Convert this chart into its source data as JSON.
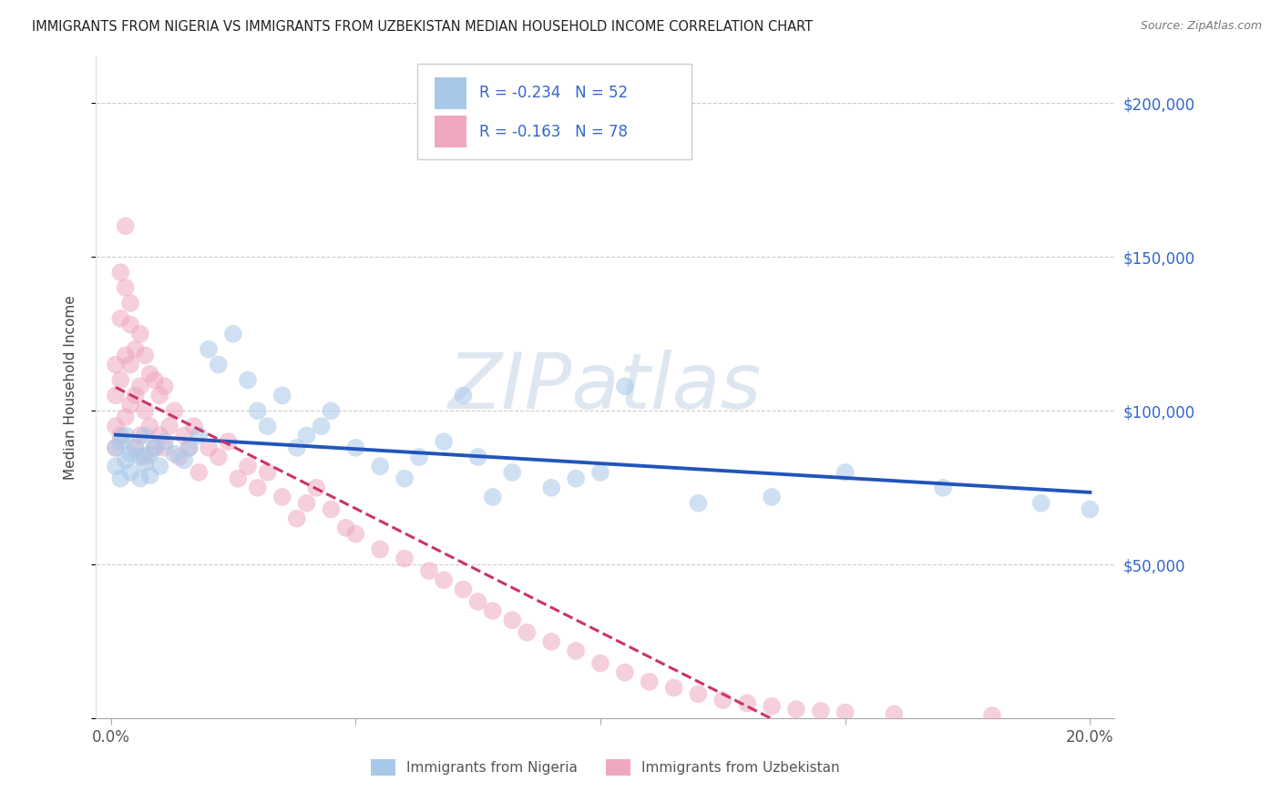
{
  "title": "IMMIGRANTS FROM NIGERIA VS IMMIGRANTS FROM UZBEKISTAN MEDIAN HOUSEHOLD INCOME CORRELATION CHART",
  "source": "Source: ZipAtlas.com",
  "ylabel": "Median Household Income",
  "nigeria_label": "Immigrants from Nigeria",
  "uzbekistan_label": "Immigrants from Uzbekistan",
  "nigeria_R": -0.234,
  "nigeria_N": 52,
  "uzbekistan_R": -0.163,
  "uzbekistan_N": 78,
  "nigeria_scatter_color": "#a8c8e8",
  "uzbekistan_scatter_color": "#f0a8c0",
  "nigeria_trend_color": "#2255bb",
  "uzbekistan_trend_color": "#cc3366",
  "watermark_color": "#c8d8e8",
  "watermark_text": "ZIPatlas",
  "right_tick_color": "#3366cc",
  "grid_color": "#cccccc",
  "title_color": "#222222",
  "source_color": "#777777",
  "xlim": [
    -0.003,
    0.205
  ],
  "ylim": [
    0,
    215000
  ],
  "xticks": [
    0.0,
    0.05,
    0.1,
    0.15,
    0.2
  ],
  "xtick_labels": [
    "0.0%",
    "",
    "",
    "",
    "20.0%"
  ],
  "yticks": [
    0,
    50000,
    100000,
    150000,
    200000
  ],
  "ytick_labels_right": [
    "$50,000",
    "$100,000",
    "$150,000",
    "$200,000"
  ],
  "marker_size": 200,
  "marker_alpha": 0.55,
  "nigeria_x": [
    0.001,
    0.001,
    0.002,
    0.002,
    0.003,
    0.003,
    0.004,
    0.004,
    0.005,
    0.006,
    0.006,
    0.007,
    0.007,
    0.008,
    0.008,
    0.009,
    0.01,
    0.011,
    0.013,
    0.015,
    0.016,
    0.018,
    0.02,
    0.022,
    0.025,
    0.028,
    0.03,
    0.032,
    0.035,
    0.038,
    0.04,
    0.043,
    0.045,
    0.05,
    0.055,
    0.06,
    0.063,
    0.068,
    0.072,
    0.075,
    0.078,
    0.082,
    0.09,
    0.095,
    0.1,
    0.105,
    0.12,
    0.135,
    0.15,
    0.17,
    0.19,
    0.2
  ],
  "nigeria_y": [
    88000,
    82000,
    90000,
    78000,
    92000,
    84000,
    86000,
    80000,
    88000,
    85000,
    78000,
    92000,
    83000,
    86000,
    79000,
    88000,
    82000,
    90000,
    86000,
    84000,
    88000,
    92000,
    120000,
    115000,
    125000,
    110000,
    100000,
    95000,
    105000,
    88000,
    92000,
    95000,
    100000,
    88000,
    82000,
    78000,
    85000,
    90000,
    105000,
    85000,
    72000,
    80000,
    75000,
    78000,
    80000,
    108000,
    70000,
    72000,
    80000,
    75000,
    70000,
    68000
  ],
  "uzbekistan_x": [
    0.001,
    0.001,
    0.001,
    0.001,
    0.002,
    0.002,
    0.002,
    0.002,
    0.003,
    0.003,
    0.003,
    0.003,
    0.004,
    0.004,
    0.004,
    0.004,
    0.005,
    0.005,
    0.005,
    0.006,
    0.006,
    0.006,
    0.007,
    0.007,
    0.007,
    0.008,
    0.008,
    0.009,
    0.009,
    0.01,
    0.01,
    0.011,
    0.011,
    0.012,
    0.013,
    0.014,
    0.015,
    0.016,
    0.017,
    0.018,
    0.02,
    0.022,
    0.024,
    0.026,
    0.028,
    0.03,
    0.032,
    0.035,
    0.038,
    0.04,
    0.042,
    0.045,
    0.048,
    0.05,
    0.055,
    0.06,
    0.065,
    0.068,
    0.072,
    0.075,
    0.078,
    0.082,
    0.085,
    0.09,
    0.095,
    0.1,
    0.105,
    0.11,
    0.115,
    0.12,
    0.125,
    0.13,
    0.135,
    0.14,
    0.145,
    0.15,
    0.16,
    0.18
  ],
  "uzbekistan_y": [
    95000,
    115000,
    88000,
    105000,
    130000,
    145000,
    110000,
    92000,
    160000,
    140000,
    118000,
    98000,
    135000,
    115000,
    128000,
    102000,
    120000,
    105000,
    88000,
    125000,
    108000,
    92000,
    118000,
    100000,
    85000,
    112000,
    95000,
    110000,
    88000,
    105000,
    92000,
    108000,
    88000,
    95000,
    100000,
    85000,
    92000,
    88000,
    95000,
    80000,
    88000,
    85000,
    90000,
    78000,
    82000,
    75000,
    80000,
    72000,
    65000,
    70000,
    75000,
    68000,
    62000,
    60000,
    55000,
    52000,
    48000,
    45000,
    42000,
    38000,
    35000,
    32000,
    28000,
    25000,
    22000,
    18000,
    15000,
    12000,
    10000,
    8000,
    6000,
    5000,
    4000,
    3000,
    2500,
    2000,
    1500,
    1000
  ]
}
